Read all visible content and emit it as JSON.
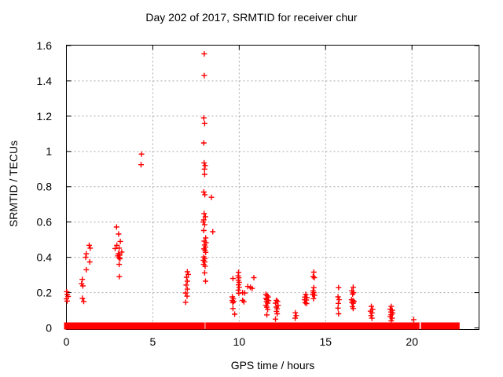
{
  "chart_data": {
    "type": "scatter",
    "title": "Day 202 of 2017, SRMTID for receiver chur",
    "xlabel": "GPS time / hours",
    "ylabel": "SRMTID / TECUs",
    "xlim": [
      0,
      23.88
    ],
    "ylim": [
      0,
      1.6
    ],
    "grid": true,
    "legend": "none",
    "marker": "plus",
    "colors": {
      "marker": "#ff0000",
      "grid": "#a9a9a9",
      "border": "#000000",
      "text": "#000000",
      "background": "#ffffff"
    },
    "xticks": [
      {
        "v": 0,
        "label": "0"
      },
      {
        "v": 5,
        "label": "5"
      },
      {
        "v": 10,
        "label": "10"
      },
      {
        "v": 15,
        "label": "15"
      },
      {
        "v": 20,
        "label": "20"
      }
    ],
    "yticks": [
      {
        "v": 0,
        "label": "0"
      },
      {
        "v": 0.2,
        "label": "0.2"
      },
      {
        "v": 0.4,
        "label": "0.4"
      },
      {
        "v": 0.6,
        "label": "0.6"
      },
      {
        "v": 0.8,
        "label": "0.8"
      },
      {
        "v": 1,
        "label": "1"
      },
      {
        "v": 1.2,
        "label": "1.2"
      },
      {
        "v": 1.4,
        "label": "1.4"
      },
      {
        "v": 1.6,
        "label": "1.6"
      }
    ],
    "points": [
      [
        0.02,
        0.205
      ],
      [
        0.05,
        0.19
      ],
      [
        0.1,
        0.178
      ],
      [
        0.0,
        0.165
      ],
      [
        0.04,
        0.152
      ],
      [
        0.92,
        0.275
      ],
      [
        0.88,
        0.25
      ],
      [
        0.95,
        0.238
      ],
      [
        0.93,
        0.168
      ],
      [
        1.0,
        0.15
      ],
      [
        1.32,
        0.468
      ],
      [
        1.38,
        0.452
      ],
      [
        1.15,
        0.42
      ],
      [
        1.12,
        0.4
      ],
      [
        1.35,
        0.374
      ],
      [
        1.15,
        0.33
      ],
      [
        2.9,
        0.572
      ],
      [
        3.02,
        0.532
      ],
      [
        3.12,
        0.49
      ],
      [
        2.92,
        0.468
      ],
      [
        3.05,
        0.452
      ],
      [
        2.82,
        0.45
      ],
      [
        3.2,
        0.43
      ],
      [
        3.0,
        0.42
      ],
      [
        3.08,
        0.412
      ],
      [
        2.98,
        0.408
      ],
      [
        3.04,
        0.398
      ],
      [
        3.1,
        0.392
      ],
      [
        3.05,
        0.36
      ],
      [
        3.06,
        0.29
      ],
      [
        4.35,
        0.985
      ],
      [
        4.32,
        0.925
      ],
      [
        7.0,
        0.318
      ],
      [
        7.05,
        0.303
      ],
      [
        6.95,
        0.287
      ],
      [
        7.0,
        0.265
      ],
      [
        6.93,
        0.243
      ],
      [
        7.0,
        0.22
      ],
      [
        6.9,
        0.198
      ],
      [
        6.98,
        0.18
      ],
      [
        6.9,
        0.145
      ],
      [
        7.98,
        1.553
      ],
      [
        7.98,
        1.43
      ],
      [
        7.95,
        1.19
      ],
      [
        8.0,
        1.158
      ],
      [
        7.95,
        1.048
      ],
      [
        7.97,
        0.935
      ],
      [
        8.03,
        0.92
      ],
      [
        7.99,
        0.9
      ],
      [
        8.0,
        0.87
      ],
      [
        7.95,
        0.77
      ],
      [
        8.01,
        0.755
      ],
      [
        8.39,
        0.74
      ],
      [
        7.97,
        0.648
      ],
      [
        8.04,
        0.63
      ],
      [
        7.95,
        0.612
      ],
      [
        7.92,
        0.6
      ],
      [
        8.0,
        0.585
      ],
      [
        7.95,
        0.552
      ],
      [
        8.47,
        0.545
      ],
      [
        8.06,
        0.51
      ],
      [
        7.98,
        0.492
      ],
      [
        8.08,
        0.483
      ],
      [
        8.0,
        0.47
      ],
      [
        8.05,
        0.458
      ],
      [
        7.96,
        0.448
      ],
      [
        8.02,
        0.44
      ],
      [
        8.06,
        0.428
      ],
      [
        7.95,
        0.402
      ],
      [
        8.01,
        0.392
      ],
      [
        7.93,
        0.383
      ],
      [
        8.0,
        0.374
      ],
      [
        7.94,
        0.36
      ],
      [
        8.03,
        0.35
      ],
      [
        8.0,
        0.312
      ],
      [
        8.05,
        0.265
      ],
      [
        9.64,
        0.28
      ],
      [
        9.6,
        0.176
      ],
      [
        9.66,
        0.165
      ],
      [
        9.6,
        0.155
      ],
      [
        9.68,
        0.15
      ],
      [
        9.63,
        0.143
      ],
      [
        9.64,
        0.11
      ],
      [
        9.74,
        0.078
      ],
      [
        9.96,
        0.315
      ],
      [
        9.94,
        0.295
      ],
      [
        9.98,
        0.284
      ],
      [
        9.95,
        0.27
      ],
      [
        10.0,
        0.258
      ],
      [
        9.96,
        0.244
      ],
      [
        10.0,
        0.23
      ],
      [
        9.95,
        0.214
      ],
      [
        9.98,
        0.196
      ],
      [
        10.85,
        0.285
      ],
      [
        10.5,
        0.235
      ],
      [
        10.65,
        0.23
      ],
      [
        10.75,
        0.224
      ],
      [
        10.2,
        0.2
      ],
      [
        10.32,
        0.198
      ],
      [
        10.2,
        0.156
      ],
      [
        10.27,
        0.148
      ],
      [
        11.55,
        0.19
      ],
      [
        11.62,
        0.182
      ],
      [
        11.68,
        0.175
      ],
      [
        11.55,
        0.167
      ],
      [
        11.6,
        0.16
      ],
      [
        11.7,
        0.155
      ],
      [
        11.58,
        0.148
      ],
      [
        11.65,
        0.14
      ],
      [
        11.55,
        0.128
      ],
      [
        11.6,
        0.118
      ],
      [
        11.65,
        0.105
      ],
      [
        11.6,
        0.074
      ],
      [
        12.15,
        0.156
      ],
      [
        12.22,
        0.15
      ],
      [
        12.1,
        0.14
      ],
      [
        12.25,
        0.128
      ],
      [
        12.15,
        0.118
      ],
      [
        12.2,
        0.108
      ],
      [
        12.16,
        0.094
      ],
      [
        12.2,
        0.08
      ],
      [
        12.1,
        0.05
      ],
      [
        13.25,
        0.086
      ],
      [
        13.3,
        0.07
      ],
      [
        13.24,
        0.055
      ],
      [
        13.85,
        0.19
      ],
      [
        13.8,
        0.175
      ],
      [
        13.92,
        0.172
      ],
      [
        13.78,
        0.16
      ],
      [
        13.88,
        0.158
      ],
      [
        13.82,
        0.143
      ],
      [
        13.9,
        0.138
      ],
      [
        14.32,
        0.316
      ],
      [
        14.28,
        0.29
      ],
      [
        14.35,
        0.285
      ],
      [
        14.32,
        0.228
      ],
      [
        14.28,
        0.21
      ],
      [
        14.32,
        0.2
      ],
      [
        14.25,
        0.19
      ],
      [
        14.36,
        0.185
      ],
      [
        14.3,
        0.166
      ],
      [
        15.75,
        0.228
      ],
      [
        15.72,
        0.176
      ],
      [
        15.78,
        0.16
      ],
      [
        15.74,
        0.139
      ],
      [
        15.72,
        0.112
      ],
      [
        15.75,
        0.08
      ],
      [
        16.6,
        0.23
      ],
      [
        16.52,
        0.21
      ],
      [
        16.62,
        0.2
      ],
      [
        16.56,
        0.192
      ],
      [
        16.5,
        0.16
      ],
      [
        16.58,
        0.155
      ],
      [
        16.65,
        0.15
      ],
      [
        16.52,
        0.145
      ],
      [
        16.6,
        0.14
      ],
      [
        16.55,
        0.12
      ],
      [
        16.6,
        0.11
      ],
      [
        17.65,
        0.122
      ],
      [
        17.72,
        0.105
      ],
      [
        17.6,
        0.095
      ],
      [
        17.68,
        0.085
      ],
      [
        17.63,
        0.07
      ],
      [
        17.68,
        0.055
      ],
      [
        18.8,
        0.122
      ],
      [
        18.74,
        0.106
      ],
      [
        18.86,
        0.1
      ],
      [
        18.78,
        0.09
      ],
      [
        18.88,
        0.084
      ],
      [
        18.8,
        0.075
      ],
      [
        18.74,
        0.064
      ],
      [
        18.85,
        0.055
      ],
      [
        18.8,
        0.04
      ],
      [
        20.1,
        0.047
      ]
    ],
    "zero_band_segments": [
      [
        0.0,
        3.05
      ],
      [
        3.2,
        6.95
      ],
      [
        7.04,
        7.87
      ],
      [
        8.18,
        9.6
      ],
      [
        9.68,
        10.0
      ],
      [
        10.17,
        11.68
      ],
      [
        11.85,
        12.33
      ],
      [
        12.45,
        13.25
      ],
      [
        13.4,
        14.27
      ],
      [
        14.4,
        15.45
      ],
      [
        15.57,
        15.8
      ],
      [
        15.93,
        16.66
      ],
      [
        16.9,
        18.73
      ],
      [
        18.88,
        20.3
      ],
      [
        20.65,
        22.62
      ]
    ]
  }
}
